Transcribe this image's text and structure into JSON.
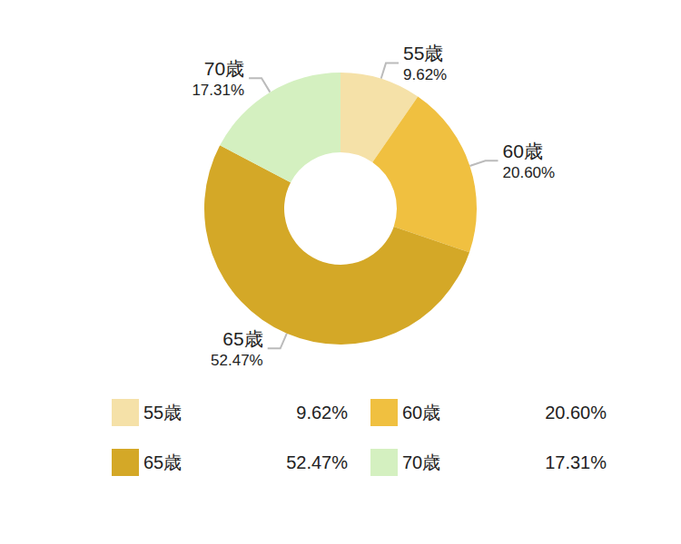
{
  "chart_data": {
    "type": "pie",
    "categories": [
      "55歳",
      "60歳",
      "65歳",
      "70歳"
    ],
    "values": [
      9.62,
      20.6,
      52.47,
      17.31
    ],
    "value_labels": [
      "9.62%",
      "20.60%",
      "52.47%",
      "17.31%"
    ],
    "colors": [
      "#f5e1a8",
      "#f0c040",
      "#d4a827",
      "#d4f0c0"
    ],
    "data_labels": true,
    "legend": "bottom"
  }
}
